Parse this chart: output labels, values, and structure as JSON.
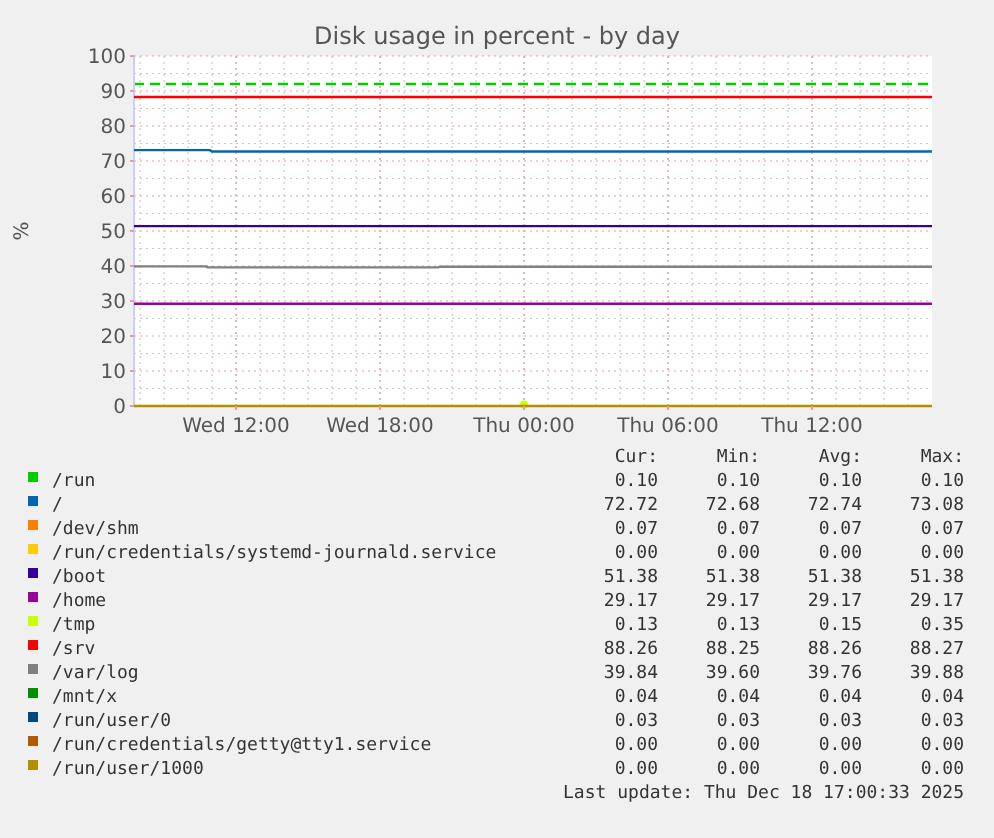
{
  "chart_data": {
    "type": "line",
    "title": "Disk usage in percent - by day",
    "ylabel": "%",
    "xlim": [
      "2025-12-17T07:45",
      "2025-12-18T17:00"
    ],
    "xticks": [
      {
        "value": "2025-12-17T12:00",
        "label": "Wed 12:00"
      },
      {
        "value": "2025-12-17T18:00",
        "label": "Wed 18:00"
      },
      {
        "value": "2025-12-18T00:00",
        "label": "Thu 00:00"
      },
      {
        "value": "2025-12-18T06:00",
        "label": "Thu 06:00"
      },
      {
        "value": "2025-12-18T12:00",
        "label": "Thu 12:00"
      }
    ],
    "ylim": [
      0,
      100
    ],
    "yticks": [
      0,
      10,
      20,
      30,
      40,
      50,
      60,
      70,
      80,
      90,
      100
    ],
    "grid": true,
    "legend": "bottom",
    "line_style": "solid",
    "marker": "none",
    "x": [
      "2025-12-17T07:45",
      "2025-12-18T17:00"
    ],
    "series": [
      {
        "name": "/run",
        "color": "#00cc00",
        "values": [
          null,
          null
        ]
      },
      {
        "name": "/",
        "color": "#0066b3",
        "x": [
          "2025-12-17T07:45",
          "2025-12-17T10:55",
          "2025-12-17T11:00",
          "2025-12-18T17:00"
        ],
        "values": [
          73.1,
          73.1,
          72.7,
          72.7
        ]
      },
      {
        "name": "/dev/shm",
        "color": "#ff8000",
        "values": [
          null,
          null
        ]
      },
      {
        "name": "/run/credentials/systemd-journald.service",
        "color": "#ffcc00",
        "values": [
          null,
          null
        ]
      },
      {
        "name": "/boot",
        "color": "#330099",
        "values": [
          51.4,
          51.4
        ]
      },
      {
        "name": "/home",
        "color": "#990099",
        "values": [
          29.2,
          29.2
        ]
      },
      {
        "name": "/tmp",
        "color": "#ccff00",
        "marker": "circle",
        "x": [
          "2025-12-18T00:00"
        ],
        "values": [
          0.4
        ]
      },
      {
        "name": "/srv",
        "color": "#ff0000",
        "values": [
          88.3,
          88.3
        ]
      },
      {
        "name": "/var/log",
        "color": "#808080",
        "x": [
          "2025-12-17T07:45",
          "2025-12-17T10:45",
          "2025-12-17T10:50",
          "2025-12-17T20:25",
          "2025-12-17T20:30",
          "2025-12-18T17:00"
        ],
        "values": [
          39.9,
          39.9,
          39.6,
          39.6,
          39.8,
          39.8
        ]
      },
      {
        "name": "/mnt/x",
        "color": "#008f00",
        "values": [
          null,
          null
        ]
      },
      {
        "name": "/run/user/0",
        "color": "#00487d",
        "values": [
          null,
          null
        ]
      },
      {
        "name": "/run/credentials/getty@tty1.service",
        "color": "#b35a00",
        "values": [
          null,
          null
        ]
      },
      {
        "name": "/run/user/1000",
        "color": "#b38f00",
        "values": [
          0,
          0
        ]
      }
    ],
    "ref_lines": [
      {
        "axis": "y",
        "value": 92,
        "color": "#00cc00",
        "line_style": "dashed"
      }
    ],
    "annotations": [
      "Cur:",
      "Min:",
      "Avg:",
      "Max:",
      "0.10",
      "0.10",
      "0.10",
      "0.10",
      "72.72",
      "72.68",
      "72.74",
      "73.08",
      "0.07",
      "0.07",
      "0.07",
      "0.07",
      "0.00",
      "0.00",
      "0.00",
      "0.00",
      "51.38",
      "51.38",
      "51.38",
      "51.38",
      "29.17",
      "29.17",
      "29.17",
      "29.17",
      "0.13",
      "0.13",
      "0.15",
      "0.35",
      "88.26",
      "88.25",
      "88.26",
      "88.27",
      "39.84",
      "39.60",
      "39.76",
      "39.88",
      "0.04",
      "0.04",
      "0.04",
      "0.04",
      "0.03",
      "0.03",
      "0.03",
      "0.03",
      "0.00",
      "0.00",
      "0.00",
      "0.00",
      "0.00",
      "0.00",
      "0.00",
      "0.00",
      "Last update: Thu Dec 18 17:00:33 2025"
    ]
  }
}
